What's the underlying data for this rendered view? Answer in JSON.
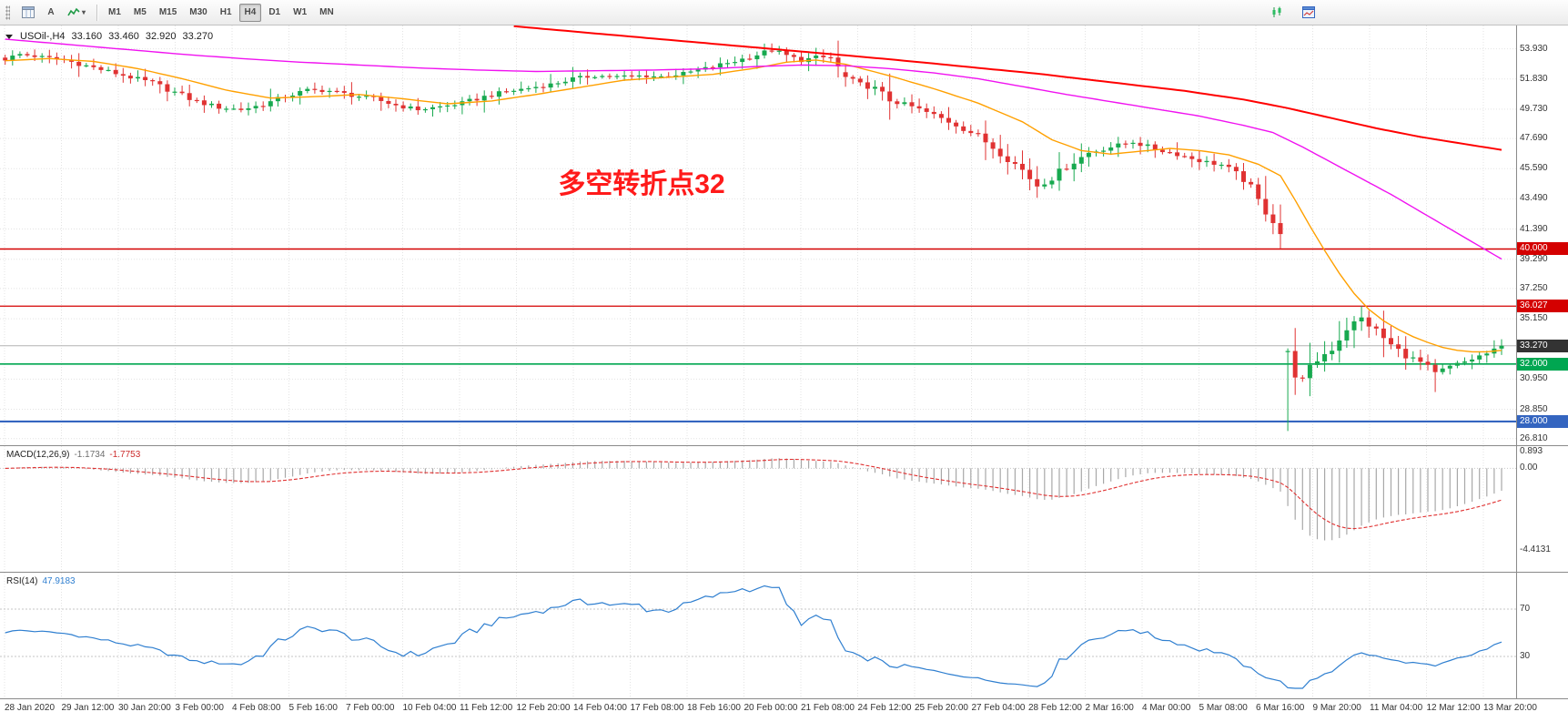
{
  "toolbar": {
    "cursor_label": "A",
    "dropdown_arrow": "▾",
    "timeframes": [
      "M1",
      "M5",
      "M15",
      "M30",
      "H1",
      "H4",
      "D1",
      "W1",
      "MN"
    ],
    "active_timeframe": "H4"
  },
  "header": {
    "symbol": "USOil-,H4",
    "open": "33.160",
    "high": "33.460",
    "low": "32.920",
    "close": "33.270"
  },
  "price_axis": {
    "labels": [
      {
        "text": "53.930",
        "value": 53.93
      },
      {
        "text": "51.830",
        "value": 51.83
      },
      {
        "text": "49.730",
        "value": 49.73
      },
      {
        "text": "47.690",
        "value": 47.69
      },
      {
        "text": "45.590",
        "value": 45.59
      },
      {
        "text": "43.490",
        "value": 43.49
      },
      {
        "text": "41.390",
        "value": 41.39
      },
      {
        "text": "39.290",
        "value": 39.29
      },
      {
        "text": "37.250",
        "value": 37.25
      },
      {
        "text": "35.150",
        "value": 35.15
      },
      {
        "text": "30.950",
        "value": 30.95
      },
      {
        "text": "28.850",
        "value": 28.85
      },
      {
        "text": "26.810",
        "value": 26.81
      }
    ],
    "badges": [
      {
        "text": "40.000",
        "value": 40.0,
        "color": "#d40000"
      },
      {
        "text": "36.027",
        "value": 36.027,
        "color": "#d40000"
      },
      {
        "text": "33.270",
        "value": 33.27,
        "color": "#333333"
      },
      {
        "text": "32.000",
        "value": 32.0,
        "color": "#00a651"
      },
      {
        "text": "28.000",
        "value": 28.0,
        "color": "#3465c0"
      }
    ]
  },
  "chart_data": {
    "type": "candlestick",
    "symbol": "USOil",
    "timeframe": "H4",
    "ylim": [
      26.35,
      55.55
    ],
    "bars": 204,
    "wiggle": 0.2,
    "up_color": "#17a94f",
    "down_color": "#e03232",
    "annotation": {
      "text": "多空转折点32",
      "x_frac": 0.423,
      "price": 43.9,
      "color": "#ff1a1a",
      "font_size": 30
    },
    "levels": [
      {
        "value": 40.0,
        "color": "#d40000",
        "width": 1.6
      },
      {
        "value": 36.027,
        "color": "#d40000",
        "width": 1.2
      },
      {
        "value": 33.27,
        "color": "#b4b4b4",
        "width": 1
      },
      {
        "value": 32.0,
        "color": "#00a651",
        "width": 1.6
      },
      {
        "value": 28.0,
        "color": "#3465c0",
        "width": 2.2
      }
    ],
    "close_anchors": [
      [
        0,
        53.2
      ],
      [
        2,
        53.55
      ],
      [
        5,
        53.35
      ],
      [
        8,
        53.15
      ],
      [
        11,
        52.75
      ],
      [
        14,
        52.35
      ],
      [
        17,
        51.95
      ],
      [
        20,
        51.55
      ],
      [
        23,
        50.9
      ],
      [
        26,
        50.25
      ],
      [
        29,
        49.85
      ],
      [
        32,
        49.7
      ],
      [
        35,
        50.05
      ],
      [
        38,
        50.6
      ],
      [
        41,
        51.05
      ],
      [
        44,
        51.0
      ],
      [
        47,
        50.7
      ],
      [
        50,
        50.45
      ],
      [
        53,
        50.0
      ],
      [
        56,
        49.7
      ],
      [
        59,
        49.9
      ],
      [
        62,
        50.15
      ],
      [
        65,
        50.6
      ],
      [
        68,
        50.95
      ],
      [
        71,
        51.2
      ],
      [
        74,
        51.45
      ],
      [
        77,
        51.85
      ],
      [
        80,
        52.05
      ],
      [
        83,
        52.0
      ],
      [
        86,
        52.05
      ],
      [
        89,
        52.0
      ],
      [
        92,
        52.2
      ],
      [
        95,
        52.55
      ],
      [
        98,
        52.95
      ],
      [
        101,
        53.35
      ],
      [
        104,
        53.85
      ],
      [
        106,
        53.45
      ],
      [
        108,
        53.1
      ],
      [
        110,
        53.35
      ],
      [
        112,
        53.3
      ],
      [
        114,
        51.9
      ],
      [
        116,
        51.45
      ],
      [
        118,
        51.15
      ],
      [
        120,
        50.35
      ],
      [
        123,
        49.9
      ],
      [
        126,
        49.3
      ],
      [
        129,
        48.65
      ],
      [
        132,
        47.85
      ],
      [
        135,
        46.7
      ],
      [
        138,
        45.5
      ],
      [
        140,
        44.4
      ],
      [
        142,
        44.95
      ],
      [
        144,
        45.75
      ],
      [
        147,
        46.7
      ],
      [
        150,
        47.1
      ],
      [
        153,
        47.45
      ],
      [
        156,
        46.95
      ],
      [
        159,
        46.6
      ],
      [
        162,
        46.15
      ],
      [
        165,
        45.85
      ],
      [
        168,
        44.9
      ],
      [
        170,
        43.3
      ],
      [
        173,
        41.4
      ],
      [
        174,
        31.6
      ],
      [
        176,
        30.9
      ],
      [
        178,
        32.3
      ],
      [
        180,
        33.1
      ],
      [
        182,
        34.5
      ],
      [
        184,
        35.2
      ],
      [
        186,
        34.3
      ],
      [
        188,
        33.3
      ],
      [
        190,
        32.6
      ],
      [
        192,
        32.1
      ],
      [
        194,
        31.35
      ],
      [
        196,
        31.8
      ],
      [
        198,
        32.15
      ],
      [
        200,
        32.55
      ],
      [
        202,
        32.9
      ],
      [
        203,
        33.27
      ]
    ],
    "overrides": [
      {
        "i": 104,
        "high": 54.3
      },
      {
        "i": 114,
        "open": 52.3
      },
      {
        "i": 140,
        "low": 43.85
      },
      {
        "i": 174,
        "open": 32.9,
        "low": 27.34
      },
      {
        "i": 184,
        "high": 36.03
      },
      {
        "i": 194,
        "low": 30.05
      }
    ],
    "ma": {
      "orange": {
        "color": "#ffa000",
        "width": 1.4,
        "anchors": [
          [
            0,
            53.1
          ],
          [
            6,
            53.25
          ],
          [
            12,
            53.05
          ],
          [
            18,
            52.55
          ],
          [
            24,
            51.85
          ],
          [
            30,
            51.05
          ],
          [
            36,
            50.5
          ],
          [
            42,
            50.6
          ],
          [
            48,
            50.75
          ],
          [
            54,
            50.45
          ],
          [
            60,
            50.1
          ],
          [
            66,
            50.3
          ],
          [
            72,
            50.75
          ],
          [
            78,
            51.25
          ],
          [
            84,
            51.75
          ],
          [
            90,
            51.95
          ],
          [
            96,
            52.15
          ],
          [
            102,
            52.6
          ],
          [
            106,
            53.0
          ],
          [
            110,
            53.15
          ],
          [
            114,
            52.85
          ],
          [
            120,
            52.05
          ],
          [
            126,
            51.15
          ],
          [
            132,
            50.15
          ],
          [
            138,
            48.85
          ],
          [
            142,
            47.6
          ],
          [
            146,
            46.85
          ],
          [
            150,
            46.6
          ],
          [
            154,
            46.8
          ],
          [
            158,
            47.0
          ],
          [
            162,
            46.85
          ],
          [
            166,
            46.55
          ],
          [
            170,
            45.9
          ],
          [
            173,
            45.1
          ],
          [
            175,
            43.4
          ],
          [
            177,
            41.6
          ],
          [
            179,
            39.9
          ],
          [
            181,
            38.3
          ],
          [
            183,
            36.9
          ],
          [
            185,
            35.8
          ],
          [
            187,
            35.0
          ],
          [
            189,
            34.4
          ],
          [
            191,
            33.9
          ],
          [
            193,
            33.5
          ],
          [
            195,
            33.15
          ],
          [
            197,
            32.95
          ],
          [
            199,
            32.85
          ],
          [
            201,
            32.85
          ],
          [
            203,
            32.95
          ]
        ]
      },
      "magenta": {
        "color": "#f012f0",
        "width": 1.4,
        "anchors": [
          [
            0,
            54.6
          ],
          [
            8,
            54.25
          ],
          [
            16,
            53.9
          ],
          [
            24,
            53.55
          ],
          [
            32,
            53.25
          ],
          [
            40,
            53.0
          ],
          [
            48,
            52.8
          ],
          [
            56,
            52.6
          ],
          [
            64,
            52.45
          ],
          [
            72,
            52.35
          ],
          [
            80,
            52.4
          ],
          [
            88,
            52.45
          ],
          [
            96,
            52.55
          ],
          [
            102,
            52.7
          ],
          [
            108,
            52.8
          ],
          [
            114,
            52.75
          ],
          [
            120,
            52.55
          ],
          [
            126,
            52.25
          ],
          [
            132,
            51.85
          ],
          [
            138,
            51.3
          ],
          [
            144,
            50.75
          ],
          [
            150,
            50.25
          ],
          [
            156,
            49.75
          ],
          [
            162,
            49.25
          ],
          [
            168,
            48.6
          ],
          [
            172,
            48.1
          ],
          [
            176,
            47.1
          ],
          [
            180,
            46.0
          ],
          [
            184,
            44.9
          ],
          [
            188,
            43.8
          ],
          [
            192,
            42.6
          ],
          [
            196,
            41.4
          ],
          [
            200,
            40.2
          ],
          [
            203,
            39.3
          ]
        ]
      },
      "red": {
        "color": "#ff0000",
        "width": 2,
        "anchors": [
          [
            69,
            55.5
          ],
          [
            80,
            55.0
          ],
          [
            90,
            54.55
          ],
          [
            100,
            54.1
          ],
          [
            110,
            53.65
          ],
          [
            120,
            53.2
          ],
          [
            130,
            52.7
          ],
          [
            140,
            52.2
          ],
          [
            150,
            51.6
          ],
          [
            160,
            51.0
          ],
          [
            168,
            50.4
          ],
          [
            174,
            49.8
          ],
          [
            180,
            49.1
          ],
          [
            186,
            48.4
          ],
          [
            192,
            47.8
          ],
          [
            198,
            47.3
          ],
          [
            203,
            46.9
          ]
        ]
      }
    }
  },
  "macd": {
    "label": "MACD(12,26,9)",
    "value": "-1.1734",
    "signal": "-1.7753",
    "fast": 12,
    "slow": 26,
    "smooth": 9,
    "ylim": [
      -5.6,
      1.2
    ],
    "hist_color": "#a8a8a8",
    "signal_color": "#e03030",
    "axis": [
      {
        "text": "0.893",
        "value": 0.893
      },
      {
        "text": "0.00",
        "value": 0
      },
      {
        "text": "-4.4131",
        "value": -4.4131
      }
    ]
  },
  "rsi": {
    "label": "RSI(14)",
    "value": "47.9183",
    "period": 14,
    "line_color": "#2f7fd0",
    "levels": [
      {
        "text": "70",
        "value": 70
      },
      {
        "text": "30",
        "value": 30
      }
    ]
  },
  "time_axis": {
    "labels": [
      "28 Jan 2020",
      "29 Jan 12:00",
      "30 Jan 20:00",
      "3 Feb 00:00",
      "4 Feb 08:00",
      "5 Feb 16:00",
      "7 Feb 00:00",
      "10 Feb 04:00",
      "11 Feb 12:00",
      "12 Feb 20:00",
      "14 Feb 04:00",
      "17 Feb 08:00",
      "18 Feb 16:00",
      "20 Feb 00:00",
      "21 Feb 08:00",
      "24 Feb 12:00",
      "25 Feb 20:00",
      "27 Feb 04:00",
      "28 Feb 12:00",
      "2 Mar 16:00",
      "4 Mar 00:00",
      "5 Mar 08:00",
      "6 Mar 16:00",
      "9 Mar 20:00",
      "11 Mar 04:00",
      "12 Mar 12:00",
      "13 Mar 20:00"
    ]
  }
}
